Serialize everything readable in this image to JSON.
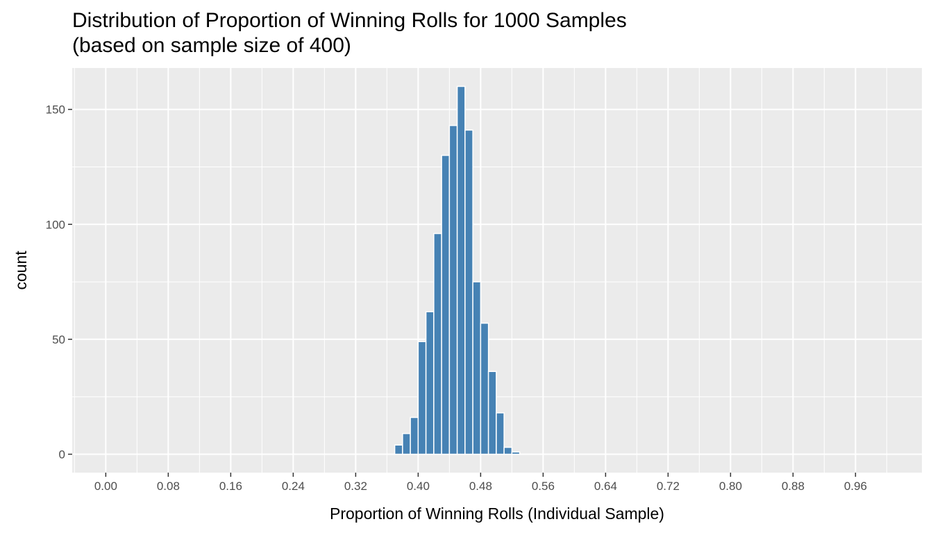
{
  "chart_data": {
    "type": "bar",
    "title": "Distribution of Proportion of Winning Rolls for 1000 Samples",
    "subtitle": "(based on sample size of 400)",
    "xlabel": "Proportion of Winning Rolls (Individual Sample)",
    "ylabel": "count",
    "xlim": [
      -0.043,
      1.045
    ],
    "ylim": [
      -8,
      168
    ],
    "x_ticks": [
      0.0,
      0.08,
      0.16,
      0.24,
      0.32,
      0.4,
      0.48,
      0.56,
      0.64,
      0.72,
      0.8,
      0.88,
      0.96
    ],
    "x_tick_labels": [
      "0.00",
      "0.08",
      "0.16",
      "0.24",
      "0.32",
      "0.40",
      "0.48",
      "0.56",
      "0.64",
      "0.72",
      "0.80",
      "0.88",
      "0.96"
    ],
    "y_ticks": [
      0,
      50,
      100,
      150
    ],
    "y_tick_labels": [
      "0",
      "50",
      "100",
      "150"
    ],
    "grid": true,
    "bin_width": 0.01,
    "bars": [
      {
        "x": 0.375,
        "count": 4
      },
      {
        "x": 0.385,
        "count": 9
      },
      {
        "x": 0.395,
        "count": 16
      },
      {
        "x": 0.405,
        "count": 49
      },
      {
        "x": 0.415,
        "count": 62
      },
      {
        "x": 0.425,
        "count": 96
      },
      {
        "x": 0.435,
        "count": 130
      },
      {
        "x": 0.445,
        "count": 143
      },
      {
        "x": 0.455,
        "count": 160
      },
      {
        "x": 0.465,
        "count": 141
      },
      {
        "x": 0.475,
        "count": 75
      },
      {
        "x": 0.485,
        "count": 57
      },
      {
        "x": 0.495,
        "count": 36
      },
      {
        "x": 0.505,
        "count": 18
      },
      {
        "x": 0.515,
        "count": 3
      },
      {
        "x": 0.525,
        "count": 1
      }
    ],
    "colors": {
      "panel": "#ebebeb",
      "grid": "#ffffff",
      "bar_fill": "#4682b4",
      "bar_outline": "#ffffff",
      "tick_text": "#4d4d4d",
      "tick_mark": "#333333"
    }
  }
}
